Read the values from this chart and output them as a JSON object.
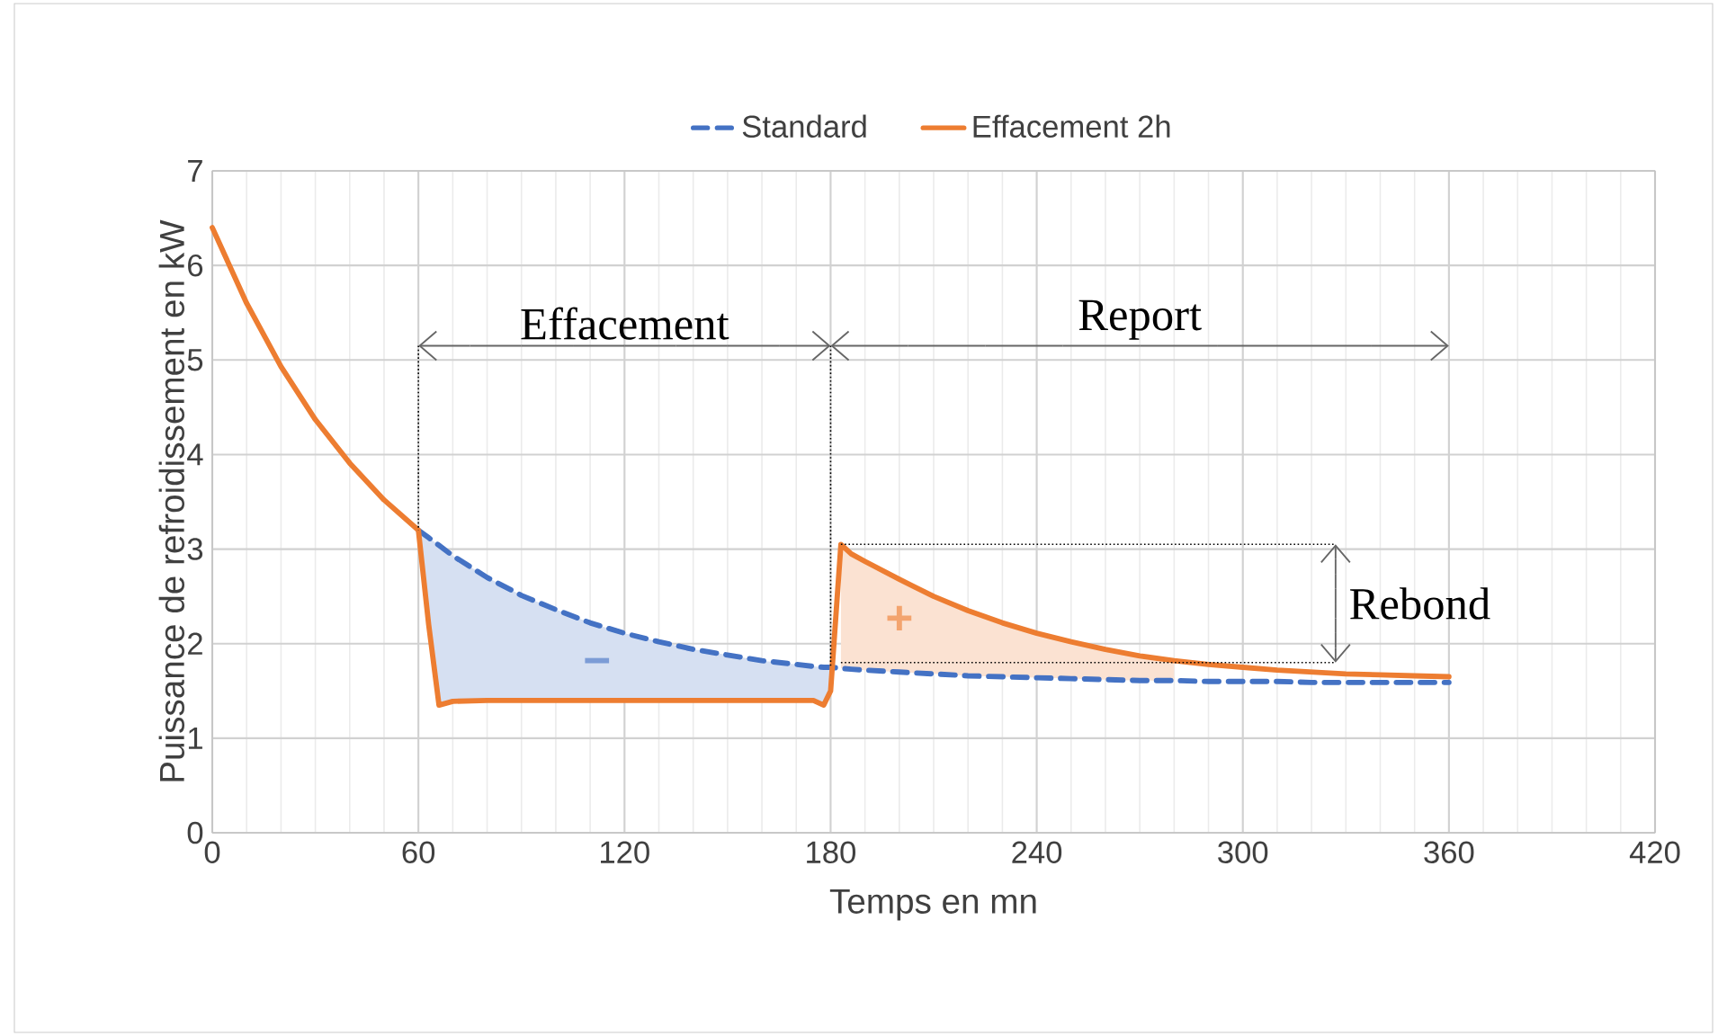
{
  "chart_data": {
    "type": "line",
    "xlabel": "Temps en mn",
    "ylabel": "Puissance de refroidissement en kW",
    "x": [
      0,
      10,
      20,
      30,
      40,
      50,
      60,
      63,
      66,
      70,
      80,
      90,
      100,
      110,
      120,
      130,
      140,
      150,
      160,
      170,
      175,
      178,
      180,
      183,
      186,
      190,
      200,
      210,
      220,
      230,
      240,
      250,
      260,
      270,
      280,
      290,
      300,
      310,
      320,
      330,
      340,
      350,
      360
    ],
    "series": [
      {
        "name": "Standard",
        "color": "#4472c4",
        "line_style": "dashed",
        "values": [
          null,
          null,
          null,
          null,
          null,
          null,
          3.2,
          3.12,
          3.04,
          2.93,
          2.7,
          2.51,
          2.36,
          2.22,
          2.11,
          2.02,
          1.94,
          1.88,
          1.82,
          1.78,
          1.76,
          1.75,
          1.75,
          1.74,
          1.73,
          1.72,
          1.7,
          1.68,
          1.66,
          1.65,
          1.64,
          1.63,
          1.62,
          1.61,
          1.61,
          1.6,
          1.6,
          1.6,
          1.59,
          1.59,
          1.59,
          1.59,
          1.59
        ],
        "lower": [
          null,
          null,
          null,
          null,
          null,
          null,
          3.2,
          2.2,
          1.35,
          1.39,
          1.4,
          1.4,
          1.4,
          1.4,
          1.4,
          1.4,
          1.4,
          1.4,
          1.4,
          1.4,
          1.4,
          1.35,
          1.5,
          null,
          null,
          null,
          null,
          null,
          null,
          null,
          null,
          null,
          null,
          null,
          null,
          null,
          null,
          null,
          null,
          null,
          null,
          null,
          null
        ],
        "upper": [
          null,
          null,
          null,
          null,
          null,
          null,
          3.2,
          3.12,
          3.04,
          2.93,
          2.7,
          2.51,
          2.36,
          2.22,
          2.11,
          2.02,
          1.94,
          1.88,
          1.82,
          1.78,
          1.76,
          1.75,
          1.75,
          null,
          null,
          null,
          null,
          null,
          null,
          null,
          null,
          null,
          null,
          null,
          null,
          null,
          null,
          null,
          null,
          null,
          null,
          null,
          null
        ]
      },
      {
        "name": "Effacement 2h",
        "color": "#ed7d31",
        "line_style": "solid",
        "values": [
          6.4,
          5.6,
          4.93,
          4.37,
          3.91,
          3.52,
          3.2,
          2.2,
          1.35,
          1.39,
          1.4,
          1.4,
          1.4,
          1.4,
          1.4,
          1.4,
          1.4,
          1.4,
          1.4,
          1.4,
          1.4,
          1.35,
          1.5,
          3.05,
          2.95,
          2.87,
          2.68,
          2.5,
          2.35,
          2.22,
          2.11,
          2.02,
          1.94,
          1.87,
          1.82,
          1.78,
          1.75,
          1.72,
          1.7,
          1.68,
          1.67,
          1.66,
          1.65
        ],
        "lower": [
          null,
          null,
          null,
          null,
          null,
          null,
          null,
          null,
          null,
          null,
          null,
          null,
          null,
          null,
          null,
          null,
          null,
          null,
          null,
          null,
          null,
          null,
          null,
          1.74,
          1.73,
          1.72,
          1.7,
          1.68,
          1.66,
          1.65,
          1.64,
          1.63,
          1.62,
          1.61,
          1.61,
          null,
          null,
          null,
          null,
          null,
          null,
          null,
          null
        ],
        "upper": [
          null,
          null,
          null,
          null,
          null,
          null,
          null,
          null,
          null,
          null,
          null,
          null,
          null,
          null,
          null,
          null,
          null,
          null,
          null,
          null,
          null,
          null,
          null,
          3.05,
          2.95,
          2.87,
          2.68,
          2.5,
          2.35,
          2.22,
          2.11,
          2.02,
          1.94,
          1.87,
          1.82,
          null,
          null,
          null,
          null,
          null,
          null,
          null,
          null
        ]
      }
    ],
    "xlim": [
      0,
      420
    ],
    "xticks": [
      0,
      60,
      120,
      180,
      240,
      300,
      360,
      420
    ],
    "ylim": [
      0,
      7
    ],
    "yticks": [
      0,
      1,
      2,
      3,
      4,
      5,
      6,
      7
    ],
    "grid": true,
    "legend": "top",
    "marker": "none",
    "ref_lines": [
      {
        "axis": "x",
        "value": 60,
        "color": "#000000",
        "line_style": "dotted"
      },
      {
        "axis": "x",
        "value": 180,
        "color": "#000000",
        "line_style": "dotted"
      }
    ],
    "annotations": [
      {
        "text": "Effacement",
        "x": 60,
        "y": 5.15
      },
      "Report",
      {
        "text": "Rebond",
        "x": 183,
        "y": 3.05
      },
      "−",
      "+"
    ]
  }
}
